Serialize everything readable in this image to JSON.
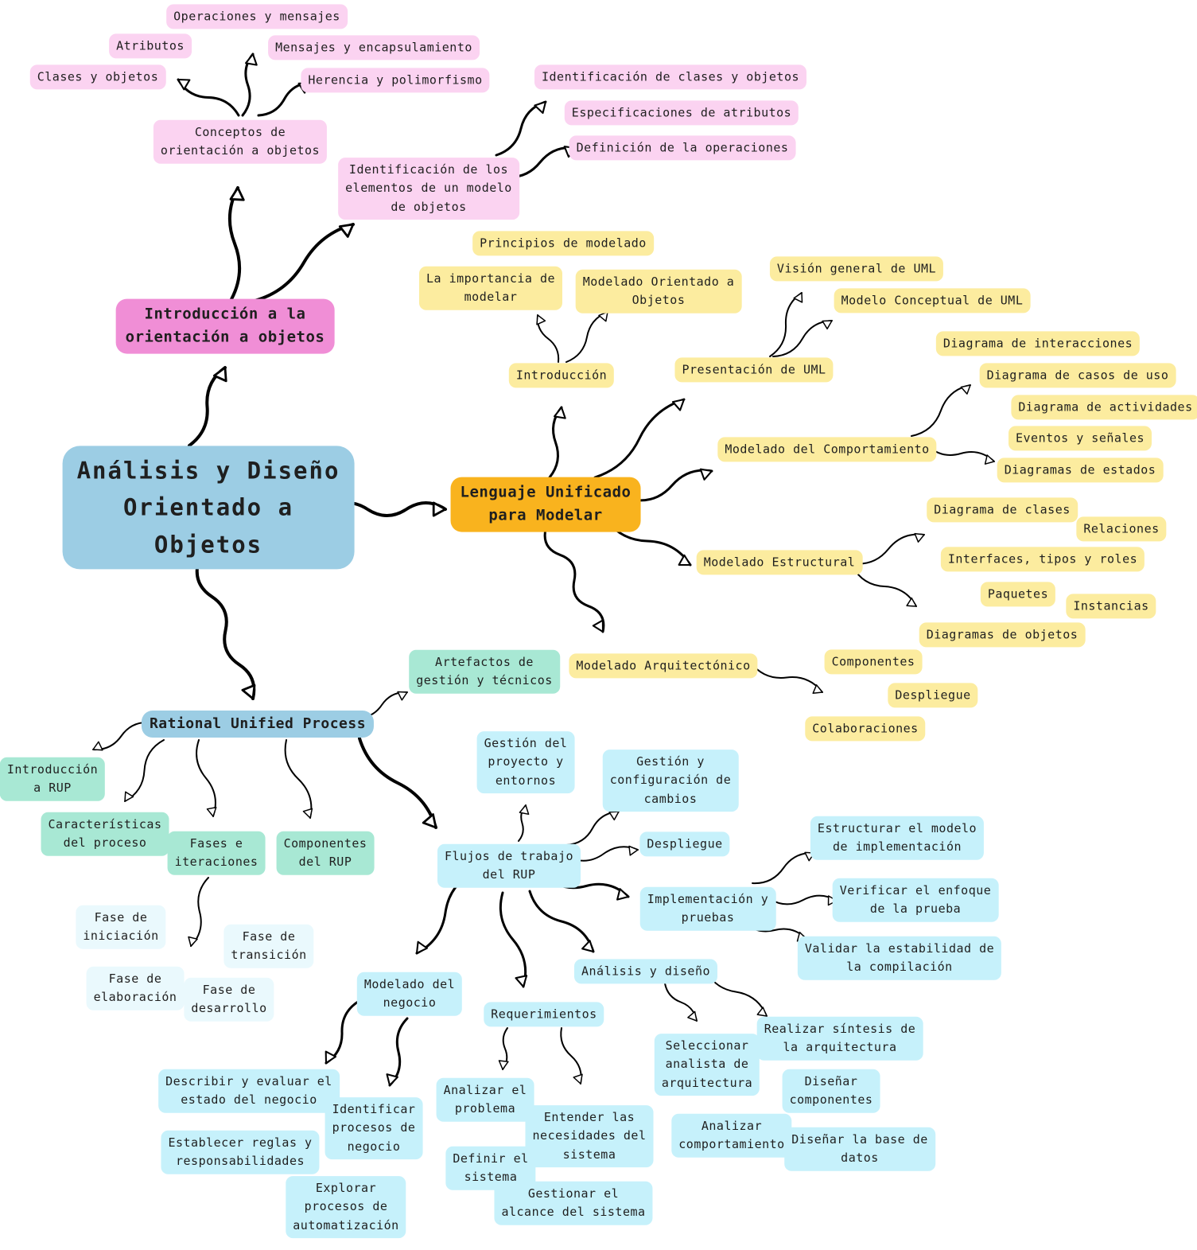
{
  "colors": {
    "root": "#9ccde4",
    "oop_hub": "#f08ed6",
    "oop_leaf": "#fbd3f1",
    "uml_hub": "#f9b31e",
    "uml_leaf": "#fcec9f",
    "rup_hub": "#9ccde4",
    "rup_leaf": "#a8e8d4",
    "workflow_leaf": "#c6f1fb",
    "phase_leaf": "#eaf9fd",
    "arrow": "#000000"
  },
  "root": "Análisis y Diseño\nOrientado a\nObjetos",
  "oop": {
    "title": "Introducción a la\norientación a objetos",
    "concepts": {
      "title": "Conceptos de\norientación a objetos",
      "items": [
        "Clases y objetos",
        "Atributos",
        "Operaciones y mensajes",
        "Mensajes y encapsulamiento",
        "Herencia y polimorfismo"
      ]
    },
    "identification": {
      "title": "Identificación de los\nelementos de un modelo\nde objetos",
      "items": [
        "Identificación de clases y objetos",
        "Especificaciones de atributos",
        "Definición de la operaciones"
      ]
    }
  },
  "uml": {
    "title": "Lenguaje Unificado\npara Modelar",
    "intro": {
      "title": "Introducción",
      "items": [
        "Principios de modelado",
        "La importancia de\nmodelar",
        "Modelado Orientado a\nObjetos"
      ]
    },
    "presentation": {
      "title": "Presentación de UML",
      "items": [
        "Visión general de UML",
        "Modelo Conceptual de UML"
      ]
    },
    "behavior": {
      "title": "Modelado del Comportamiento",
      "items": [
        "Diagrama de interacciones",
        "Diagrama de casos de uso",
        "Diagrama de actividades",
        "Eventos y señales",
        "Diagramas de estados"
      ]
    },
    "structural": {
      "title": "Modelado Estructural",
      "items": [
        "Diagrama de clases",
        "Relaciones",
        "Interfaces, tipos y roles",
        "Paquetes",
        "Instancias",
        "Diagramas de objetos"
      ]
    },
    "architectural": {
      "title": "Modelado Arquitectónico",
      "items": [
        "Componentes",
        "Despliegue",
        "Colaboraciones"
      ]
    }
  },
  "rup": {
    "title": "Rational Unified Process",
    "intro": "Introducción\na RUP",
    "characteristics": "Características\ndel proceso",
    "phases": {
      "title": "Fases e\niteraciones",
      "items": [
        "Fase de\niniciación",
        "Fase de\ntransición",
        "Fase de\nelaboración",
        "Fase de\ndesarrollo"
      ]
    },
    "components": "Componentes\ndel RUP",
    "artifacts": "Artefactos de\ngestión y técnicos",
    "workflows": {
      "title": "Flujos de trabajo\ndel RUP",
      "project_management": "Gestión del\nproyecto y\nentornos",
      "config_management": "Gestión y\nconfiguración de\ncambios",
      "deployment": "Despliegue",
      "implementation": {
        "title": "Implementación y\npruebas",
        "items": [
          "Estructurar el modelo\nde implementación",
          "Verificar el enfoque\nde la prueba",
          "Validar la estabilidad de\nla compilación"
        ]
      },
      "analysis": {
        "title": "Análisis y diseño",
        "items": [
          "Seleccionar\nanalista de\narquitectura",
          "Realizar síntesis de\nla arquitectura",
          "Diseñar\ncomponentes",
          "Analizar\ncomportamiento",
          "Diseñar la base de\ndatos"
        ]
      },
      "business": {
        "title": "Modelado del\nnegocio",
        "items": [
          "Describir y evaluar el\nestado del negocio",
          "Identificar\nprocesos de\nnegocio",
          "Establecer reglas y\nresponsabilidades",
          "Explorar\nprocesos de\nautomatización"
        ]
      },
      "requirements": {
        "title": "Requerimientos",
        "items": [
          "Analizar el\nproblema",
          "Entender las\nnecesidades del\nsistema",
          "Definir el\nsistema",
          "Gestionar el\nalcance del sistema"
        ]
      }
    }
  }
}
